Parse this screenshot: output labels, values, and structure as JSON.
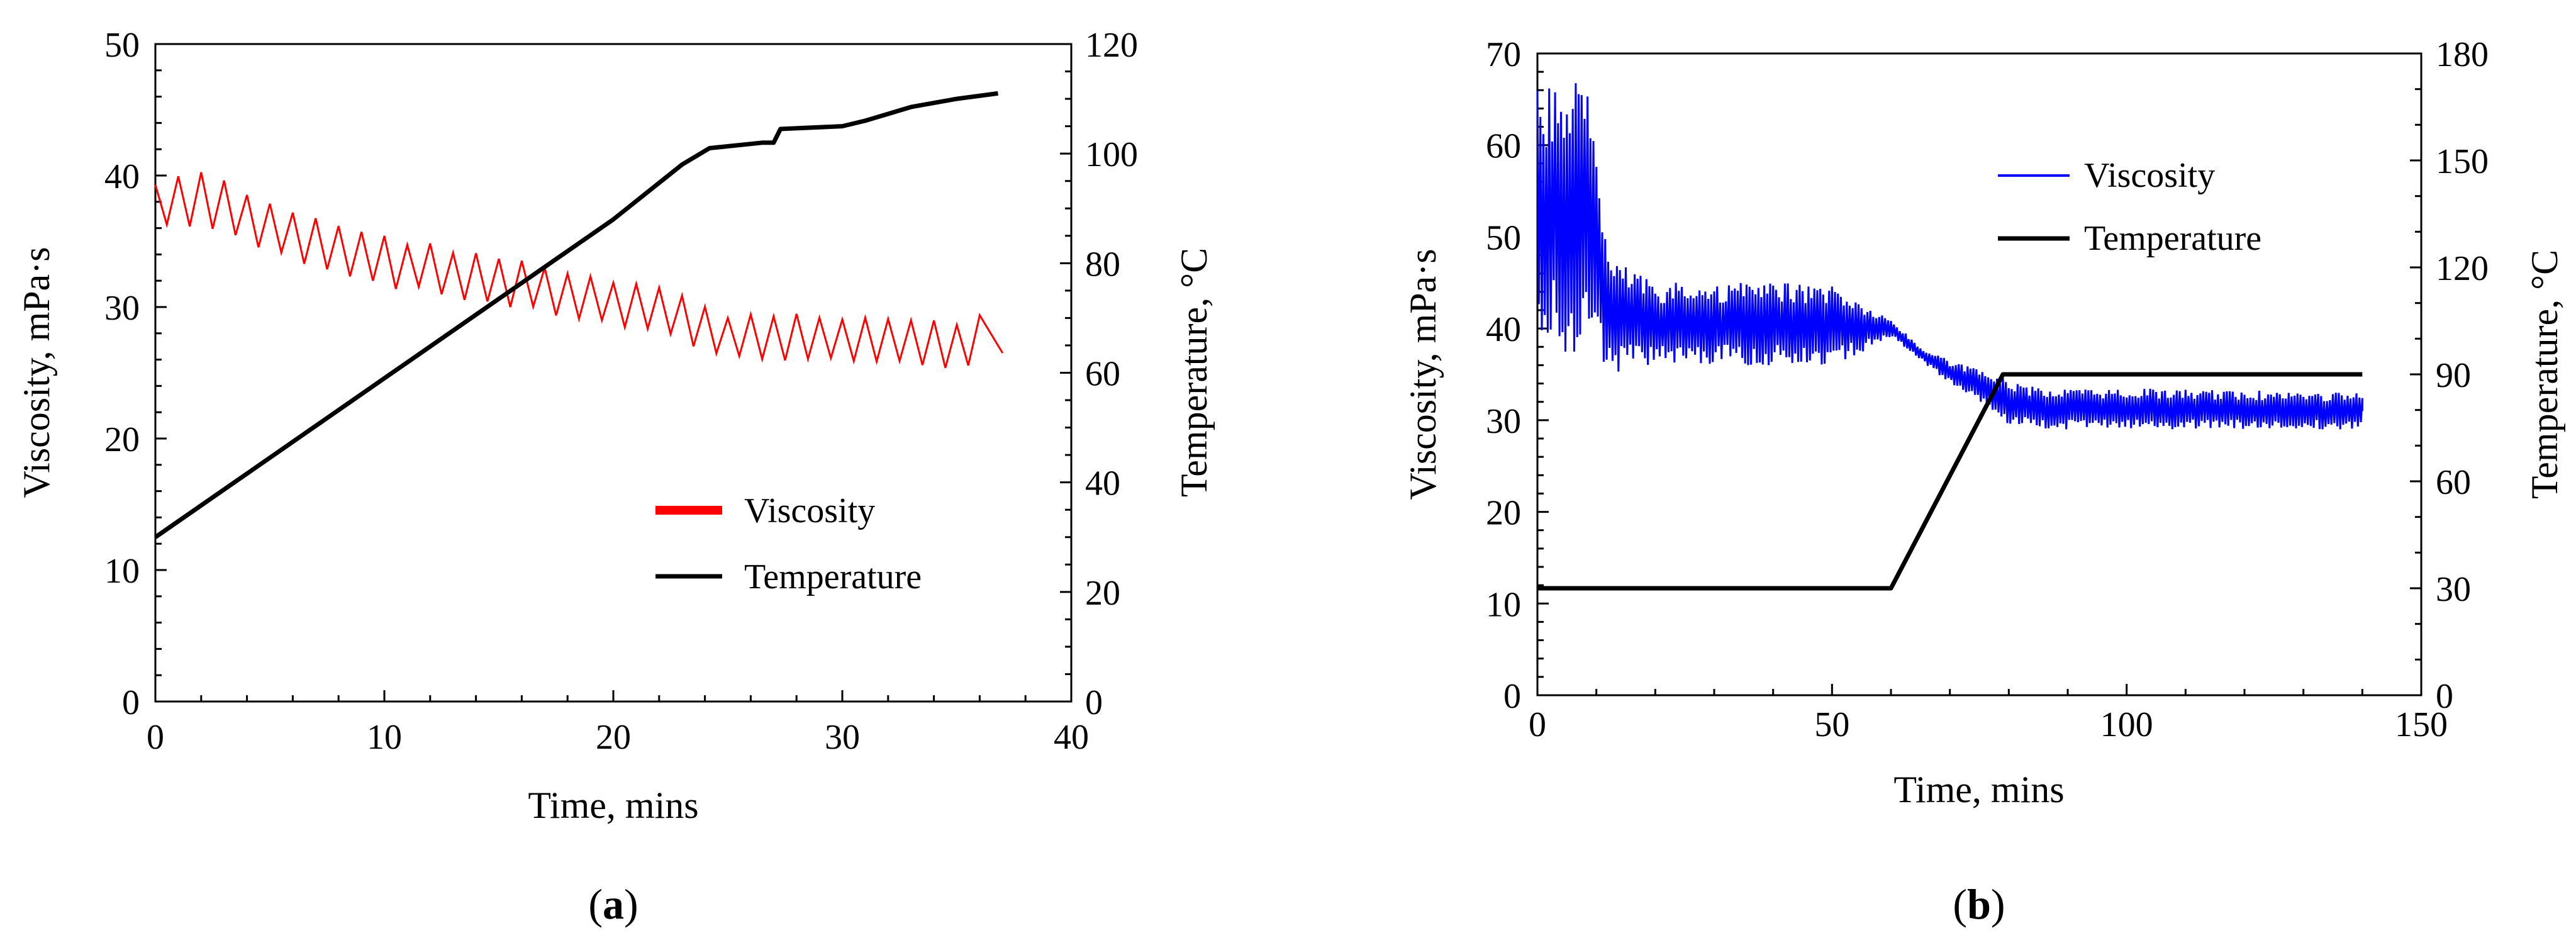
{
  "chart_data": [
    {
      "type": "line",
      "xlabel": "Time,  mins",
      "ylabel": "Viscosity, mPa·s",
      "y2label": "Temperature, °C",
      "xlim": [
        0,
        40
      ],
      "ylim": [
        0,
        50
      ],
      "y2lim": [
        0,
        120
      ],
      "xticks": [
        "0",
        "10",
        "20",
        "30",
        "40"
      ],
      "yticks": [
        "0",
        "10",
        "20",
        "30",
        "40",
        "50"
      ],
      "y2ticks": [
        "0",
        "20",
        "40",
        "60",
        "80",
        "100",
        "120"
      ],
      "legend_position": "bottom-right",
      "caption_letter": "a",
      "caption_open": "(",
      "caption_close": ")",
      "series": [
        {
          "name": "Viscosity",
          "axis": "left",
          "color": "#ff0000",
          "oscillating": true,
          "noise": 0.25,
          "x": [
            0,
            2,
            5,
            10,
            15,
            20,
            22.5,
            25,
            30,
            35,
            36
          ],
          "lo": [
            36,
            36,
            34,
            31.5,
            30,
            28.5,
            27.5,
            26,
            25.8,
            25.2,
            25.8
          ],
          "hi": [
            39.5,
            40.5,
            38,
            35.5,
            34,
            32,
            31.5,
            29.5,
            29.5,
            29,
            29.5
          ],
          "end": 37,
          "end_value": 26.5
        },
        {
          "name": "Temperature",
          "axis": "right",
          "color": "#000000",
          "x": [
            0,
            20,
            23,
            24.2,
            26.5,
            27,
            27.3,
            30,
            31,
            33,
            35,
            36.8
          ],
          "y": [
            30,
            88,
            98,
            101,
            102,
            102,
            104.5,
            105,
            106,
            108.5,
            110,
            111
          ]
        }
      ]
    },
    {
      "type": "line",
      "xlabel": "Time, mins",
      "ylabel": "Viscosity, mPa·s",
      "y2label": "Temperature, °C",
      "xlim": [
        0,
        150
      ],
      "ylim": [
        0,
        70
      ],
      "y2lim": [
        0,
        180
      ],
      "xticks": [
        "0",
        "50",
        "100",
        "150"
      ],
      "yticks": [
        "0",
        "10",
        "20",
        "30",
        "40",
        "50",
        "60",
        "70"
      ],
      "y2ticks": [
        "0",
        "30",
        "60",
        "90",
        "120",
        "150",
        "180"
      ],
      "legend_position": "top-right",
      "caption_letter": "b",
      "caption_open": "(",
      "caption_close": ")",
      "series": [
        {
          "name": "Viscosity",
          "axis": "left",
          "color": "#0000ff",
          "oscillating": true,
          "noise": 0.5,
          "x": [
            0,
            5,
            8,
            10,
            12,
            20,
            50,
            57,
            60,
            65,
            70,
            75,
            80,
            85,
            100,
            140
          ],
          "lo": [
            40,
            37,
            38,
            37,
            35,
            36,
            36,
            38,
            39,
            36.5,
            34,
            32,
            29.5,
            29,
            29,
            29
          ],
          "hi": [
            66,
            67,
            67,
            62,
            48,
            45,
            45,
            42,
            41,
            38,
            36.5,
            35.5,
            34.5,
            33.5,
            33.5,
            33
          ],
          "end": 140,
          "end_value": 31
        },
        {
          "name": "Temperature",
          "axis": "right",
          "color": "#000000",
          "x": [
            0,
            60,
            79,
            140
          ],
          "y": [
            30,
            30,
            90,
            90
          ]
        }
      ]
    }
  ]
}
